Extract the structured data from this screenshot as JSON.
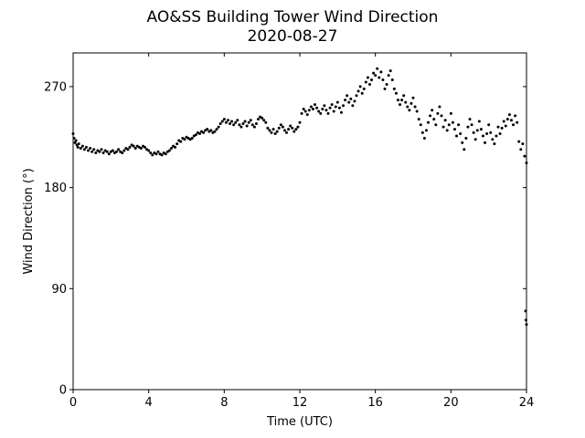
{
  "chart_data": {
    "type": "scatter",
    "title": "AO&SS Building Tower Wind Direction",
    "subtitle": "2020-08-27",
    "xlabel": "Time (UTC)",
    "ylabel": "Wind Direction (°)",
    "xlim": [
      0,
      24
    ],
    "ylim": [
      0,
      300
    ],
    "xticks": [
      0,
      4,
      8,
      12,
      16,
      20,
      24
    ],
    "yticks": [
      0,
      90,
      180,
      270
    ],
    "grid": false,
    "legend": "none",
    "marker_color": "#000000",
    "series": [
      {
        "points": [
          [
            0.0,
            228
          ],
          [
            0.05,
            224
          ],
          [
            0.1,
            220
          ],
          [
            0.15,
            222
          ],
          [
            0.2,
            218
          ],
          [
            0.25,
            216
          ],
          [
            0.3,
            219
          ],
          [
            0.4,
            215
          ],
          [
            0.5,
            217
          ],
          [
            0.6,
            214
          ],
          [
            0.7,
            216
          ],
          [
            0.8,
            213
          ],
          [
            0.9,
            215
          ],
          [
            1.0,
            212
          ],
          [
            1.1,
            214
          ],
          [
            1.2,
            211
          ],
          [
            1.3,
            213
          ],
          [
            1.4,
            212
          ],
          [
            1.5,
            214
          ],
          [
            1.6,
            211
          ],
          [
            1.7,
            213
          ],
          [
            1.8,
            212
          ],
          [
            1.9,
            210
          ],
          [
            2.0,
            212
          ],
          [
            2.1,
            213
          ],
          [
            2.2,
            211
          ],
          [
            2.3,
            212
          ],
          [
            2.4,
            214
          ],
          [
            2.5,
            212
          ],
          [
            2.6,
            211
          ],
          [
            2.7,
            213
          ],
          [
            2.8,
            215
          ],
          [
            2.9,
            214
          ],
          [
            3.0,
            216
          ],
          [
            3.1,
            218
          ],
          [
            3.2,
            217
          ],
          [
            3.3,
            215
          ],
          [
            3.4,
            217
          ],
          [
            3.5,
            216
          ],
          [
            3.6,
            215
          ],
          [
            3.7,
            217
          ],
          [
            3.8,
            216
          ],
          [
            3.9,
            214
          ],
          [
            4.0,
            213
          ],
          [
            4.1,
            211
          ],
          [
            4.2,
            209
          ],
          [
            4.3,
            211
          ],
          [
            4.4,
            210
          ],
          [
            4.5,
            212
          ],
          [
            4.6,
            210
          ],
          [
            4.7,
            209
          ],
          [
            4.8,
            211
          ],
          [
            4.9,
            210
          ],
          [
            5.0,
            212
          ],
          [
            5.1,
            213
          ],
          [
            5.2,
            215
          ],
          [
            5.3,
            217
          ],
          [
            5.4,
            216
          ],
          [
            5.5,
            219
          ],
          [
            5.6,
            222
          ],
          [
            5.7,
            221
          ],
          [
            5.8,
            224
          ],
          [
            5.9,
            223
          ],
          [
            6.0,
            225
          ],
          [
            6.1,
            224
          ],
          [
            6.2,
            223
          ],
          [
            6.3,
            224
          ],
          [
            6.4,
            226
          ],
          [
            6.5,
            227
          ],
          [
            6.6,
            229
          ],
          [
            6.7,
            228
          ],
          [
            6.8,
            230
          ],
          [
            6.9,
            229
          ],
          [
            7.0,
            231
          ],
          [
            7.1,
            232
          ],
          [
            7.2,
            230
          ],
          [
            7.3,
            231
          ],
          [
            7.4,
            229
          ],
          [
            7.5,
            230
          ],
          [
            7.6,
            232
          ],
          [
            7.7,
            234
          ],
          [
            7.8,
            237
          ],
          [
            7.9,
            239
          ],
          [
            8.0,
            241
          ],
          [
            8.1,
            238
          ],
          [
            8.2,
            240
          ],
          [
            8.3,
            237
          ],
          [
            8.4,
            239
          ],
          [
            8.5,
            236
          ],
          [
            8.6,
            238
          ],
          [
            8.7,
            240
          ],
          [
            8.8,
            236
          ],
          [
            8.9,
            234
          ],
          [
            9.0,
            237
          ],
          [
            9.1,
            239
          ],
          [
            9.2,
            235
          ],
          [
            9.3,
            238
          ],
          [
            9.4,
            240
          ],
          [
            9.5,
            236
          ],
          [
            9.6,
            234
          ],
          [
            9.7,
            237
          ],
          [
            9.8,
            241
          ],
          [
            9.9,
            243
          ],
          [
            10.0,
            242
          ],
          [
            10.1,
            240
          ],
          [
            10.2,
            238
          ],
          [
            10.3,
            233
          ],
          [
            10.4,
            231
          ],
          [
            10.5,
            229
          ],
          [
            10.6,
            232
          ],
          [
            10.7,
            228
          ],
          [
            10.8,
            230
          ],
          [
            10.9,
            233
          ],
          [
            11.0,
            236
          ],
          [
            11.1,
            234
          ],
          [
            11.2,
            231
          ],
          [
            11.3,
            229
          ],
          [
            11.4,
            232
          ],
          [
            11.5,
            235
          ],
          [
            11.6,
            233
          ],
          [
            11.7,
            230
          ],
          [
            11.8,
            232
          ],
          [
            11.9,
            234
          ],
          [
            12.0,
            238
          ],
          [
            12.1,
            246
          ],
          [
            12.2,
            250
          ],
          [
            12.3,
            248
          ],
          [
            12.4,
            245
          ],
          [
            12.5,
            249
          ],
          [
            12.6,
            252
          ],
          [
            12.7,
            250
          ],
          [
            12.8,
            254
          ],
          [
            12.9,
            251
          ],
          [
            13.0,
            248
          ],
          [
            13.1,
            246
          ],
          [
            13.2,
            250
          ],
          [
            13.3,
            253
          ],
          [
            13.4,
            249
          ],
          [
            13.5,
            246
          ],
          [
            13.6,
            251
          ],
          [
            13.7,
            254
          ],
          [
            13.8,
            248
          ],
          [
            13.9,
            252
          ],
          [
            14.0,
            256
          ],
          [
            14.1,
            251
          ],
          [
            14.2,
            247
          ],
          [
            14.3,
            253
          ],
          [
            14.4,
            258
          ],
          [
            14.5,
            262
          ],
          [
            14.6,
            256
          ],
          [
            14.7,
            259
          ],
          [
            14.8,
            253
          ],
          [
            14.9,
            257
          ],
          [
            15.0,
            262
          ],
          [
            15.1,
            266
          ],
          [
            15.2,
            270
          ],
          [
            15.3,
            264
          ],
          [
            15.4,
            268
          ],
          [
            15.5,
            274
          ],
          [
            15.6,
            278
          ],
          [
            15.7,
            272
          ],
          [
            15.8,
            276
          ],
          [
            15.9,
            282
          ],
          [
            16.0,
            280
          ],
          [
            16.1,
            286
          ],
          [
            16.2,
            278
          ],
          [
            16.3,
            283
          ],
          [
            16.4,
            276
          ],
          [
            16.5,
            268
          ],
          [
            16.6,
            272
          ],
          [
            16.7,
            280
          ],
          [
            16.8,
            284
          ],
          [
            16.9,
            276
          ],
          [
            17.0,
            268
          ],
          [
            17.1,
            264
          ],
          [
            17.2,
            258
          ],
          [
            17.3,
            254
          ],
          [
            17.4,
            258
          ],
          [
            17.5,
            262
          ],
          [
            17.6,
            256
          ],
          [
            17.7,
            252
          ],
          [
            17.8,
            249
          ],
          [
            17.9,
            255
          ],
          [
            18.0,
            260
          ],
          [
            18.1,
            252
          ],
          [
            18.2,
            248
          ],
          [
            18.3,
            241
          ],
          [
            18.4,
            236
          ],
          [
            18.5,
            229
          ],
          [
            18.6,
            224
          ],
          [
            18.7,
            231
          ],
          [
            18.8,
            238
          ],
          [
            18.9,
            244
          ],
          [
            19.0,
            249
          ],
          [
            19.1,
            241
          ],
          [
            19.2,
            236
          ],
          [
            19.3,
            246
          ],
          [
            19.4,
            252
          ],
          [
            19.5,
            244
          ],
          [
            19.6,
            234
          ],
          [
            19.7,
            240
          ],
          [
            19.8,
            231
          ],
          [
            19.9,
            236
          ],
          [
            20.0,
            246
          ],
          [
            20.1,
            238
          ],
          [
            20.2,
            232
          ],
          [
            20.3,
            226
          ],
          [
            20.4,
            236
          ],
          [
            20.5,
            228
          ],
          [
            20.6,
            220
          ],
          [
            20.7,
            214
          ],
          [
            20.8,
            224
          ],
          [
            20.9,
            234
          ],
          [
            21.0,
            241
          ],
          [
            21.1,
            236
          ],
          [
            21.2,
            229
          ],
          [
            21.3,
            223
          ],
          [
            21.4,
            231
          ],
          [
            21.5,
            239
          ],
          [
            21.6,
            232
          ],
          [
            21.7,
            226
          ],
          [
            21.8,
            220
          ],
          [
            21.9,
            228
          ],
          [
            22.0,
            236
          ],
          [
            22.1,
            229
          ],
          [
            22.2,
            223
          ],
          [
            22.3,
            219
          ],
          [
            22.4,
            226
          ],
          [
            22.5,
            234
          ],
          [
            22.6,
            228
          ],
          [
            22.7,
            233
          ],
          [
            22.8,
            239
          ],
          [
            22.9,
            235
          ],
          [
            23.0,
            241
          ],
          [
            23.1,
            245
          ],
          [
            23.2,
            240
          ],
          [
            23.3,
            236
          ],
          [
            23.4,
            244
          ],
          [
            23.5,
            238
          ],
          [
            23.6,
            221
          ],
          [
            23.7,
            214
          ],
          [
            23.8,
            219
          ],
          [
            23.9,
            208
          ],
          [
            24.0,
            202
          ],
          [
            23.95,
            70
          ],
          [
            23.97,
            62
          ],
          [
            24.0,
            58
          ]
        ]
      }
    ]
  }
}
